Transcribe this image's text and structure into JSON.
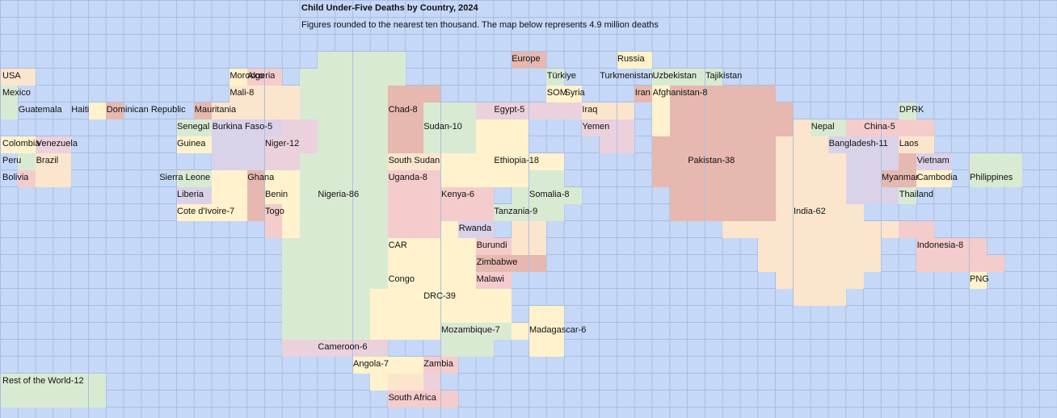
{
  "title": "Child Under-Five Deaths by Country, 2024",
  "subtitle": "Figures rounded to the nearest ten thousand. The map below represents 4.9 million deaths",
  "colors": {
    "background": "#c6d8f7",
    "gridline": "#a9bde0",
    "yellow": "#fff2cc",
    "peach": "#fce5cd",
    "pink": "#f4cccc",
    "red": "#e6b8af",
    "green": "#d9ead3",
    "lilac": "#dad2e9",
    "mauve": "#ead1dc"
  },
  "countries": [
    {
      "label": "USA",
      "color": "peach",
      "col": 0,
      "row": 4
    },
    {
      "label": "Mexico",
      "color": "green",
      "col": 0,
      "row": 5
    },
    {
      "label": "Guatemala",
      "color": "green",
      "col": 1,
      "row": 6
    },
    {
      "label": "Haiti",
      "color": "yellow",
      "col": 4,
      "row": 6
    },
    {
      "label": "Dominican Republic",
      "color": "red",
      "col": 6,
      "row": 6
    },
    {
      "label": "Colombia",
      "color": "yellow",
      "col": -1,
      "row": 8
    },
    {
      "label": "Venezuela",
      "color": "mauve",
      "col": 2,
      "row": 8
    },
    {
      "label": "Peru",
      "color": "green",
      "col": 0,
      "row": 9
    },
    {
      "label": "Brazil",
      "color": "peach",
      "col": 2,
      "row": 9
    },
    {
      "label": "Bolivia",
      "color": "pink",
      "col": 0,
      "row": 10
    },
    {
      "label": "Morocco",
      "color": "yellow",
      "col": 13,
      "row": 4
    },
    {
      "label": "Algeria",
      "color": "pink",
      "col": 14,
      "row": 4
    },
    {
      "label": "Mali-8",
      "color": "peach",
      "col": 13,
      "row": 5
    },
    {
      "label": "Mauritania",
      "color": "red",
      "col": 11,
      "row": 6
    },
    {
      "label": "Senegal",
      "color": "green",
      "col": 10,
      "row": 7
    },
    {
      "label": "Burkina Faso-5",
      "color": "lilac",
      "col": 12,
      "row": 7
    },
    {
      "label": "Guinea",
      "color": "yellow",
      "col": 10,
      "row": 8
    },
    {
      "label": "Niger-12",
      "color": "mauve",
      "col": 15,
      "row": 8
    },
    {
      "label": "Sierra Leone",
      "color": "green",
      "col": 9,
      "row": 10
    },
    {
      "label": "Ghana",
      "color": "red",
      "col": 14,
      "row": 10
    },
    {
      "label": "Liberia",
      "color": "lilac",
      "col": 10,
      "row": 11
    },
    {
      "label": "Benin",
      "color": "yellow",
      "col": 15,
      "row": 11
    },
    {
      "label": "Nigeria-86",
      "color": "green",
      "col": 18,
      "row": 11
    },
    {
      "label": "Cote d'Ivoire-7",
      "color": "yellow",
      "col": 10,
      "row": 12
    },
    {
      "label": "Togo",
      "color": "pink",
      "col": 15,
      "row": 12
    },
    {
      "label": "Chad-8",
      "color": "red",
      "col": 22,
      "row": 6
    },
    {
      "label": "Sudan-10",
      "color": "green",
      "col": 24,
      "row": 7
    },
    {
      "label": "South Sudan",
      "color": "peach",
      "col": 22,
      "row": 9
    },
    {
      "label": "Uganda-8",
      "color": "pink",
      "col": 22,
      "row": 10
    },
    {
      "label": "Kenya-6",
      "color": "pink",
      "col": 25,
      "row": 11
    },
    {
      "label": "Rwanda",
      "color": "lilac",
      "col": 26,
      "row": 13
    },
    {
      "label": "CAR",
      "color": "yellow",
      "col": 22,
      "row": 14
    },
    {
      "label": "Burundi",
      "color": "pink",
      "col": 27,
      "row": 14
    },
    {
      "label": "Zimbabwe",
      "color": "red",
      "col": 27,
      "row": 15
    },
    {
      "label": "Congo",
      "color": "peach",
      "col": 22,
      "row": 16
    },
    {
      "label": "Malawi",
      "color": "pink",
      "col": 27,
      "row": 16
    },
    {
      "label": "DRC-39",
      "color": "yellow",
      "col": 24,
      "row": 17
    },
    {
      "label": "Mozambique-7",
      "color": "green",
      "col": 25,
      "row": 19
    },
    {
      "label": "Cameroon-6",
      "color": "mauve",
      "col": 18,
      "row": 20
    },
    {
      "label": "Angola-7",
      "color": "yellow",
      "col": 20,
      "row": 21
    },
    {
      "label": "Zambia",
      "color": "pink",
      "col": 24,
      "row": 21
    },
    {
      "label": "South Africa",
      "color": "pink",
      "col": 22,
      "row": 23
    },
    {
      "label": "Egypt-5",
      "color": "mauve",
      "col": 28,
      "row": 6
    },
    {
      "label": "Ethiopia-18",
      "color": "yellow",
      "col": 28,
      "row": 9
    },
    {
      "label": "Somalia-8",
      "color": "green",
      "col": 30,
      "row": 11
    },
    {
      "label": "Tanzania-9",
      "color": "green",
      "col": 28,
      "row": 12
    },
    {
      "label": "Madagascar-6",
      "color": "yellow",
      "col": 30,
      "row": 19
    },
    {
      "label": "Europe",
      "color": "red",
      "col": 29,
      "row": 3
    },
    {
      "label": "Russia",
      "color": "yellow",
      "col": 35,
      "row": 3
    },
    {
      "label": "Türkiye",
      "color": "green",
      "col": 31,
      "row": 4
    },
    {
      "label": "Turkmenistan",
      "color": "peach",
      "col": 34,
      "row": 4
    },
    {
      "label": "Uzbekistan",
      "color": "green",
      "col": 37,
      "row": 4
    },
    {
      "label": "Tajikistan",
      "color": "green",
      "col": 40,
      "row": 4
    },
    {
      "label": "SOM",
      "color": "yellow",
      "col": 31,
      "row": 5
    },
    {
      "label": "Syria",
      "color": "yellow",
      "col": 32,
      "row": 5
    },
    {
      "label": "Iran",
      "color": "red",
      "col": 36,
      "row": 5
    },
    {
      "label": "Afghanistan-8",
      "color": "yellow",
      "col": 37,
      "row": 5
    },
    {
      "label": "Iraq",
      "color": "peach",
      "col": 33,
      "row": 6
    },
    {
      "label": "Yemen",
      "color": "mauve",
      "col": 33,
      "row": 7
    },
    {
      "label": "Pakistan-38",
      "color": "red",
      "col": 39,
      "row": 9
    },
    {
      "label": "Nepal",
      "color": "green",
      "col": 46,
      "row": 7
    },
    {
      "label": "China-5",
      "color": "pink",
      "col": 49,
      "row": 7
    },
    {
      "label": "DPRK",
      "color": "green",
      "col": 51,
      "row": 6
    },
    {
      "label": "Bangladesh-11",
      "color": "lilac",
      "col": 47,
      "row": 8
    },
    {
      "label": "Laos",
      "color": "peach",
      "col": 51,
      "row": 8
    },
    {
      "label": "Vietnam",
      "color": "lilac",
      "col": 52,
      "row": 9
    },
    {
      "label": "Myanmar",
      "color": "red",
      "col": 50,
      "row": 10
    },
    {
      "label": "Cambodia",
      "color": "yellow",
      "col": 52,
      "row": 10
    },
    {
      "label": "Philippines",
      "color": "green",
      "col": 55,
      "row": 10
    },
    {
      "label": "Thailand",
      "color": "green",
      "col": 51,
      "row": 11
    },
    {
      "label": "India-62",
      "color": "peach",
      "col": 45,
      "row": 12
    },
    {
      "label": "Indonesia-8",
      "color": "pink",
      "col": 52,
      "row": 14
    },
    {
      "label": "PNG",
      "color": "yellow",
      "col": 55,
      "row": 16
    },
    {
      "label": "Rest of the World-12",
      "color": "green",
      "col": 0,
      "row": 22
    }
  ]
}
